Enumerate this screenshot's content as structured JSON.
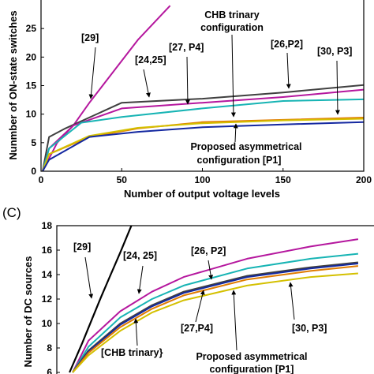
{
  "chart_data": [
    {
      "type": "line",
      "panel_label": "",
      "xlabel": "Number of output voltage levels",
      "ylabel": "Nunmber of ON-state switches",
      "xlim": [
        0,
        200
      ],
      "ylim": [
        0,
        30
      ],
      "xticks": [
        0,
        50,
        100,
        150,
        200
      ],
      "yticks": [
        0,
        5,
        10,
        15,
        20,
        25
      ],
      "grid": false,
      "series": [
        {
          "color": "#b5179e",
          "points": [
            [
              1,
              0
            ],
            [
              10,
              5
            ],
            [
              20,
              8
            ],
            [
              30,
              12
            ],
            [
              45,
              17.5
            ],
            [
              60,
              23
            ],
            [
              80,
              29
            ]
          ]
        },
        {
          "color": "#404040",
          "points": [
            [
              1,
              0
            ],
            [
              5,
              6
            ],
            [
              15,
              7.5
            ],
            [
              50,
              12
            ],
            [
              100,
              12.7
            ],
            [
              150,
              13.8
            ],
            [
              200,
              15.1
            ]
          ]
        },
        {
          "color": "#b5179e",
          "points": [
            [
              1,
              0
            ],
            [
              5,
              4
            ],
            [
              20,
              8
            ],
            [
              50,
              11
            ],
            [
              100,
              12
            ],
            [
              150,
              13
            ],
            [
              200,
              14.3
            ]
          ]
        },
        {
          "color": "#17b4b4",
          "points": [
            [
              1,
              0
            ],
            [
              5,
              4
            ],
            [
              25,
              8.5
            ],
            [
              50,
              9.5
            ],
            [
              100,
              11
            ],
            [
              150,
              12.3
            ],
            [
              200,
              12.6
            ]
          ]
        },
        {
          "color": "#e07b00",
          "points": [
            [
              1,
              0
            ],
            [
              5,
              3
            ],
            [
              30,
              6
            ],
            [
              60,
              7.5
            ],
            [
              100,
              8.6
            ],
            [
              150,
              9
            ],
            [
              200,
              9.4
            ]
          ]
        },
        {
          "color": "#d4c000",
          "points": [
            [
              1,
              0
            ],
            [
              5,
              3
            ],
            [
              30,
              6.2
            ],
            [
              60,
              7.6
            ],
            [
              100,
              8.4
            ],
            [
              150,
              8.9
            ],
            [
              200,
              9.2
            ]
          ]
        },
        {
          "color": "#1428a0",
          "points": [
            [
              1,
              0
            ],
            [
              5,
              2
            ],
            [
              30,
              6
            ],
            [
              60,
              6.9
            ],
            [
              100,
              7.7
            ],
            [
              150,
              8.2
            ],
            [
              200,
              8.6
            ]
          ]
        }
      ],
      "annotations": [
        {
          "text": "[29]"
        },
        {
          "text": "[24,25]"
        },
        {
          "text": "[27, P4]"
        },
        {
          "text": "CHB trinary"
        },
        {
          "text": "configuration"
        },
        {
          "text": "[26,P2]"
        },
        {
          "text": "[30, P3]"
        },
        {
          "text": "Proposed asymmetrical"
        },
        {
          "text": "configuration [P1]"
        }
      ]
    },
    {
      "type": "line",
      "panel_label": "(C)",
      "xlabel": "",
      "ylabel": "Number of DC sources",
      "ylim": [
        6,
        18
      ],
      "yticks": [
        6,
        8,
        10,
        12,
        14,
        16,
        18
      ],
      "grid": false,
      "series": [
        {
          "color": "#000000",
          "points": [
            [
              4,
              6
            ],
            [
              8,
              8.4
            ],
            [
              11,
              10.3
            ],
            [
              14,
              12.2
            ],
            [
              17,
              14
            ],
            [
              20,
              15.8
            ],
            [
              23.5,
              18
            ]
          ]
        },
        {
          "color": "#b5179e",
          "points": [
            [
              5,
              6
            ],
            [
              10,
              8.6
            ],
            [
              20,
              11
            ],
            [
              30,
              12.6
            ],
            [
              40,
              13.8
            ],
            [
              60,
              15.3
            ],
            [
              80,
              16.3
            ],
            [
              95,
              16.9
            ]
          ]
        },
        {
          "color": "#17b4b4",
          "points": [
            [
              5,
              6
            ],
            [
              10,
              8.1
            ],
            [
              20,
              10.5
            ],
            [
              30,
              12
            ],
            [
              40,
              13.1
            ],
            [
              60,
              14.5
            ],
            [
              80,
              15.3
            ],
            [
              95,
              15.7
            ]
          ]
        },
        {
          "color": "#404040",
          "points": [
            [
              5,
              6
            ],
            [
              10,
              7.8
            ],
            [
              20,
              10
            ],
            [
              30,
              11.5
            ],
            [
              40,
              12.6
            ],
            [
              60,
              13.9
            ],
            [
              80,
              14.6
            ],
            [
              95,
              15
            ]
          ]
        },
        {
          "color": "#1428a0",
          "points": [
            [
              5,
              6
            ],
            [
              10,
              7.7
            ],
            [
              20,
              9.9
            ],
            [
              30,
              11.4
            ],
            [
              40,
              12.5
            ],
            [
              60,
              13.8
            ],
            [
              80,
              14.5
            ],
            [
              95,
              14.9
            ]
          ]
        },
        {
          "color": "#e07b00",
          "points": [
            [
              5,
              6
            ],
            [
              10,
              7.6
            ],
            [
              20,
              9.7
            ],
            [
              30,
              11.2
            ],
            [
              40,
              12.3
            ],
            [
              60,
              13.6
            ],
            [
              80,
              14.3
            ],
            [
              95,
              14.7
            ]
          ]
        },
        {
          "color": "#d4c000",
          "points": [
            [
              5,
              6
            ],
            [
              10,
              7.4
            ],
            [
              20,
              9.4
            ],
            [
              30,
              10.9
            ],
            [
              40,
              11.9
            ],
            [
              60,
              13.1
            ],
            [
              80,
              13.8
            ],
            [
              95,
              14.1
            ]
          ]
        }
      ],
      "annotations": [
        {
          "text": "[29]"
        },
        {
          "text": "[24, 25]"
        },
        {
          "text": "[26, P2]"
        },
        {
          "text": "[27,P4]"
        },
        {
          "text": "[30, P3]"
        },
        {
          "text": "[CHB trinary}"
        },
        {
          "text": "Proposed asymmetrical"
        },
        {
          "text": "configuration [P1]"
        }
      ]
    }
  ]
}
